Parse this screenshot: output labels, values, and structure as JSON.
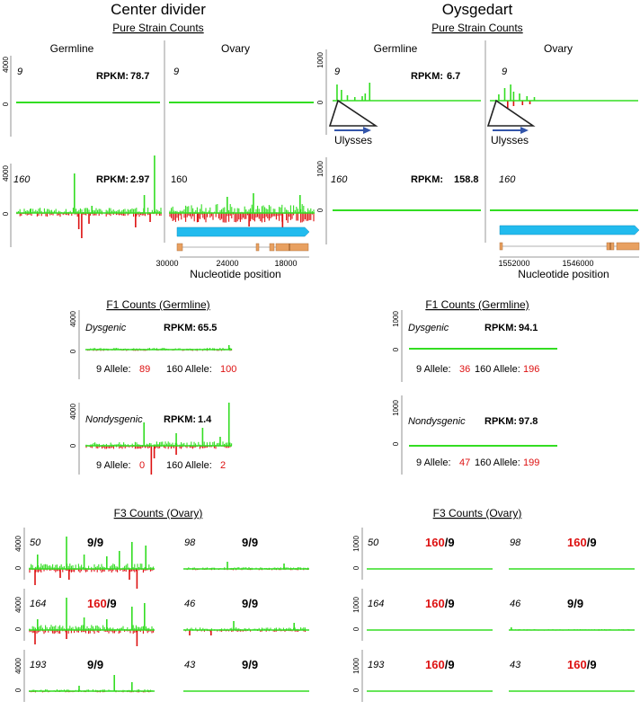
{
  "colors": {
    "green": "#33dd22",
    "red": "#dd1111",
    "blue": "#22bbee",
    "orange": "#e8a060",
    "arrow": "#3355aa",
    "axis": "#777777",
    "divider": "#aaaaaa"
  },
  "left": {
    "title": "Center divider",
    "pure_heading": "Pure Strain Counts",
    "germline_label": "Germline",
    "ovary_label": "Ovary",
    "row9": {
      "strain": "9",
      "ytick_top": "4000",
      "ytick_zero": "0",
      "rpkm_label": "RPKM:",
      "rpkm_value": "78.7",
      "ovary_strain": "9"
    },
    "row160": {
      "strain": "160",
      "ytick_top": "4000",
      "ytick_zero": "0",
      "rpkm_label": "RPKM:",
      "rpkm_value": "2.97",
      "ovary_strain": "160"
    },
    "xticks": [
      "30000",
      "24000",
      "18000"
    ],
    "xlabel": "Nucleotide position"
  },
  "right": {
    "title": "Oysgedart",
    "pure_heading": "Pure Strain Counts",
    "germline_label": "Germline",
    "ovary_label": "Ovary",
    "row9": {
      "strain": "9",
      "ytick_top": "1000",
      "ytick_zero": "0",
      "rpkm_label": "RPKM:",
      "rpkm_value": "6.7",
      "ovary_strain": "9",
      "te_label": "Ulysses"
    },
    "row160": {
      "strain": "160",
      "ytick_top": "1000",
      "ytick_zero": "0",
      "rpkm_label": "RPKM:",
      "rpkm_value": "158.8",
      "ovary_strain": "160"
    },
    "xticks": [
      "1552000",
      "1546000"
    ],
    "xlabel": "Nucleotide position"
  },
  "f1_left": {
    "heading": "F1 Counts (Germline)",
    "dysgenic": {
      "label": "Dysgenic",
      "ytick_top": "4000",
      "ytick_zero": "0",
      "rpkm_label": "RPKM:",
      "rpkm_value": "65.5",
      "allele9_label": "9 Allele:",
      "allele9_value": "89",
      "allele160_label": "160 Allele:",
      "allele160_value": "100"
    },
    "nondysgenic": {
      "label": "Nondysgenic",
      "ytick_top": "4000",
      "ytick_zero": "0",
      "rpkm_label": "RPKM:",
      "rpkm_value": "1.4",
      "allele9_label": "9 Allele:",
      "allele9_value": "0",
      "allele160_label": "160 Allele:",
      "allele160_value": "2"
    }
  },
  "f1_right": {
    "heading": "F1 Counts (Germline)",
    "dysgenic": {
      "label": "Dysgenic",
      "ytick_top": "1000",
      "ytick_zero": "0",
      "rpkm_label": "RPKM:",
      "rpkm_value": "94.1",
      "allele9_label": "9 Allele:",
      "allele9_value": "36",
      "allele160_label": "160 Allele:",
      "allele160_value": "196"
    },
    "nondysgenic": {
      "label": "Nondysgenic",
      "ytick_top": "1000",
      "ytick_zero": "0",
      "rpkm_label": "RPKM:",
      "rpkm_value": "97.8",
      "allele9_label": "9 Allele:",
      "allele9_value": "47",
      "allele160_label": "160 Allele:",
      "allele160_value": "199"
    }
  },
  "f3_left": {
    "heading": "F3 Counts (Ovary)",
    "ytick_top": "4000",
    "ytick_zero": "0",
    "panels": [
      {
        "line": "50",
        "geno_a": "9",
        "geno_b": "/9",
        "a_red": false
      },
      {
        "line": "98",
        "geno_a": "9",
        "geno_b": "/9",
        "a_red": false
      },
      {
        "line": "164",
        "geno_a": "160",
        "geno_b": "/9",
        "a_red": true
      },
      {
        "line": "46",
        "geno_a": "9",
        "geno_b": "/9",
        "a_red": false
      },
      {
        "line": "193",
        "geno_a": "9",
        "geno_b": "/9",
        "a_red": false
      },
      {
        "line": "43",
        "geno_a": "9",
        "geno_b": "/9",
        "a_red": false
      }
    ]
  },
  "f3_right": {
    "heading": "F3 Counts (Ovary)",
    "ytick_top": "1000",
    "ytick_zero": "0",
    "panels": [
      {
        "line": "50",
        "geno_a": "160",
        "geno_b": "/9",
        "a_red": true
      },
      {
        "line": "98",
        "geno_a": "160",
        "geno_b": "/9",
        "a_red": true
      },
      {
        "line": "164",
        "geno_a": "160",
        "geno_b": "/9",
        "a_red": true
      },
      {
        "line": "46",
        "geno_a": "9",
        "geno_b": "/9",
        "a_red": false
      },
      {
        "line": "193",
        "geno_a": "160",
        "geno_b": "/9",
        "a_red": true
      },
      {
        "line": "43",
        "geno_a": "160",
        "geno_b": "/9",
        "a_red": true
      }
    ]
  }
}
